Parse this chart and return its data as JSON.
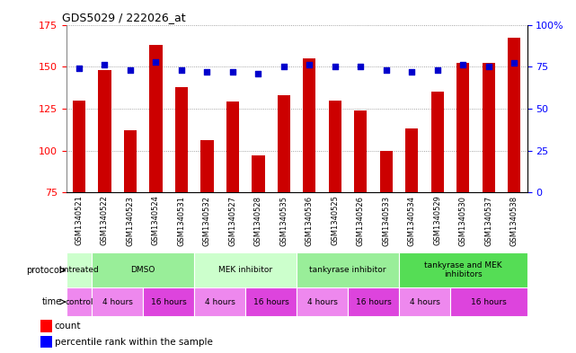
{
  "title": "GDS5029 / 222026_at",
  "samples": [
    "GSM1340521",
    "GSM1340522",
    "GSM1340523",
    "GSM1340524",
    "GSM1340531",
    "GSM1340532",
    "GSM1340527",
    "GSM1340528",
    "GSM1340535",
    "GSM1340536",
    "GSM1340525",
    "GSM1340526",
    "GSM1340533",
    "GSM1340534",
    "GSM1340529",
    "GSM1340530",
    "GSM1340537",
    "GSM1340538"
  ],
  "count_values": [
    130,
    148,
    112,
    163,
    138,
    106,
    129,
    97,
    133,
    155,
    130,
    124,
    100,
    113,
    135,
    152,
    152,
    167
  ],
  "percentile_values": [
    74,
    76,
    73,
    78,
    73,
    72,
    72,
    71,
    75,
    76,
    75,
    75,
    73,
    72,
    73,
    76,
    75,
    77
  ],
  "bar_color": "#cc0000",
  "dot_color": "#0000cc",
  "ylim_left": [
    75,
    175
  ],
  "ylim_right": [
    0,
    100
  ],
  "yticks_left": [
    75,
    100,
    125,
    150,
    175
  ],
  "yticks_right": [
    0,
    25,
    50,
    75,
    100
  ],
  "grid_color": "#888888",
  "protocol_groups": [
    {
      "label": "untreated",
      "start": 0,
      "end": 1,
      "color": "#ccffcc"
    },
    {
      "label": "DMSO",
      "start": 1,
      "end": 5,
      "color": "#99ee99"
    },
    {
      "label": "MEK inhibitor",
      "start": 5,
      "end": 9,
      "color": "#ccffcc"
    },
    {
      "label": "tankyrase inhibitor",
      "start": 9,
      "end": 13,
      "color": "#99ee99"
    },
    {
      "label": "tankyrase and MEK\ninhibitors",
      "start": 13,
      "end": 18,
      "color": "#55dd55"
    }
  ],
  "time_groups": [
    {
      "label": "control",
      "start": 0,
      "end": 1,
      "color": "#ee88ee"
    },
    {
      "label": "4 hours",
      "start": 1,
      "end": 3,
      "color": "#ee88ee"
    },
    {
      "label": "16 hours",
      "start": 3,
      "end": 5,
      "color": "#dd44dd"
    },
    {
      "label": "4 hours",
      "start": 5,
      "end": 7,
      "color": "#ee88ee"
    },
    {
      "label": "16 hours",
      "start": 7,
      "end": 9,
      "color": "#dd44dd"
    },
    {
      "label": "4 hours",
      "start": 9,
      "end": 11,
      "color": "#ee88ee"
    },
    {
      "label": "16 hours",
      "start": 11,
      "end": 13,
      "color": "#dd44dd"
    },
    {
      "label": "4 hours",
      "start": 13,
      "end": 15,
      "color": "#ee88ee"
    },
    {
      "label": "16 hours",
      "start": 15,
      "end": 18,
      "color": "#dd44dd"
    }
  ]
}
